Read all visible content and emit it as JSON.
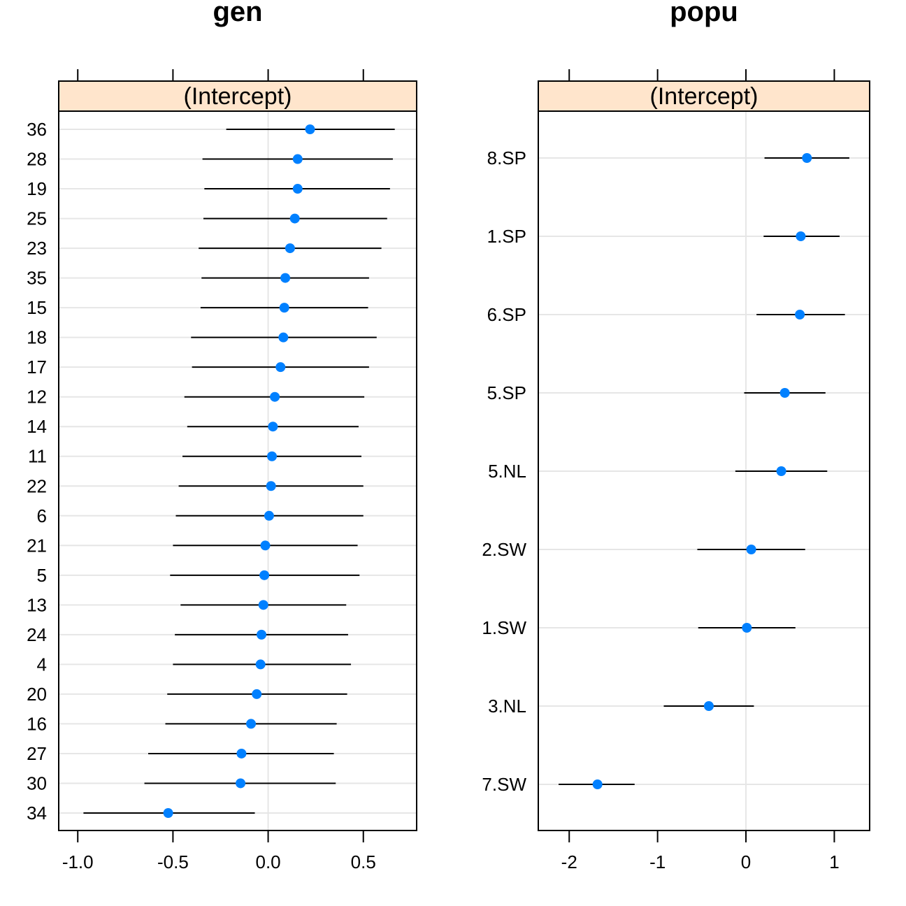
{
  "chart_data": [
    {
      "type": "dotplot",
      "title": "gen",
      "strip": "(Intercept)",
      "xlim": [
        -1.1,
        0.78
      ],
      "ticks": [
        -1.0,
        -0.5,
        0.0,
        0.5
      ],
      "tick_labels": [
        "-1.0",
        "-0.5",
        "0.0",
        "0.5"
      ],
      "categories": [
        "36",
        "28",
        "19",
        "25",
        "23",
        "35",
        "15",
        "18",
        "17",
        "12",
        "14",
        "11",
        "22",
        "6",
        "21",
        "5",
        "13",
        "24",
        "4",
        "20",
        "16",
        "27",
        "30",
        "34"
      ],
      "values": [
        0.22,
        0.155,
        0.155,
        0.14,
        0.115,
        0.09,
        0.085,
        0.08,
        0.065,
        0.035,
        0.025,
        0.02,
        0.015,
        0.005,
        -0.015,
        -0.02,
        -0.025,
        -0.035,
        -0.04,
        -0.06,
        -0.09,
        -0.14,
        -0.145,
        -0.525
      ],
      "lower": [
        -0.22,
        -0.345,
        -0.335,
        -0.34,
        -0.365,
        -0.35,
        -0.355,
        -0.405,
        -0.4,
        -0.44,
        -0.425,
        -0.45,
        -0.47,
        -0.485,
        -0.5,
        -0.515,
        -0.46,
        -0.49,
        -0.5,
        -0.53,
        -0.54,
        -0.63,
        -0.65,
        -0.97
      ],
      "upper": [
        0.665,
        0.655,
        0.64,
        0.625,
        0.595,
        0.53,
        0.525,
        0.57,
        0.53,
        0.505,
        0.475,
        0.49,
        0.5,
        0.5,
        0.47,
        0.48,
        0.41,
        0.42,
        0.435,
        0.415,
        0.36,
        0.345,
        0.355,
        -0.07
      ],
      "point_color": "#0080ff",
      "strip_color": "#ffe5cc",
      "grid": true
    },
    {
      "type": "dotplot",
      "title": "popu",
      "strip": "(Intercept)",
      "xlim": [
        -2.35,
        1.4
      ],
      "ticks": [
        -2,
        -1,
        0,
        1
      ],
      "tick_labels": [
        "-2",
        "-1",
        "0",
        "1"
      ],
      "categories": [
        "8.SP",
        "1.SP",
        "6.SP",
        "5.SP",
        "5.NL",
        "2.SW",
        "1.SW",
        "3.NL",
        "7.SW"
      ],
      "values": [
        0.69,
        0.62,
        0.61,
        0.44,
        0.4,
        0.06,
        0.01,
        -0.42,
        -1.68
      ],
      "lower": [
        0.21,
        0.2,
        0.12,
        -0.02,
        -0.12,
        -0.55,
        -0.54,
        -0.93,
        -2.12
      ],
      "upper": [
        1.17,
        1.06,
        1.12,
        0.9,
        0.92,
        0.67,
        0.56,
        0.09,
        -1.26
      ],
      "point_color": "#0080ff",
      "strip_color": "#ffe5cc",
      "grid": true
    }
  ]
}
